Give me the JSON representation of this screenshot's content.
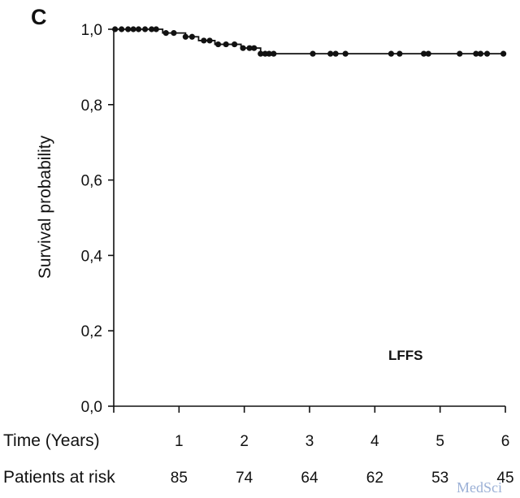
{
  "chart_data": {
    "type": "line",
    "panel_label": "C",
    "ylabel": "Survival probability",
    "xlabel_row": "Time (Years)",
    "xlim": [
      0,
      6
    ],
    "ylim": [
      0,
      1
    ],
    "x_ticks": [
      0,
      1,
      2,
      3,
      4,
      5,
      6
    ],
    "x_tick_labels": [
      "",
      "1",
      "2",
      "3",
      "4",
      "5",
      "6"
    ],
    "y_ticks": [
      0,
      0.2,
      0.4,
      0.6,
      0.8,
      1.0
    ],
    "y_tick_labels": [
      "0,0",
      "0,2",
      "0,4",
      "0,6",
      "0,8",
      "1,0"
    ],
    "annotation": "LFFS",
    "series": [
      {
        "steps": [
          [
            0,
            1.0
          ],
          [
            0.75,
            0.99
          ],
          [
            1.1,
            0.98
          ],
          [
            1.3,
            0.97
          ],
          [
            1.55,
            0.96
          ],
          [
            1.95,
            0.95
          ],
          [
            2.25,
            0.935
          ],
          [
            6.0,
            0.935
          ]
        ],
        "censored": [
          [
            0.02,
            1.0
          ],
          [
            0.12,
            1.0
          ],
          [
            0.22,
            1.0
          ],
          [
            0.3,
            1.0
          ],
          [
            0.38,
            1.0
          ],
          [
            0.48,
            1.0
          ],
          [
            0.58,
            1.0
          ],
          [
            0.65,
            1.0
          ],
          [
            0.8,
            0.99
          ],
          [
            0.92,
            0.99
          ],
          [
            1.1,
            0.98
          ],
          [
            1.2,
            0.98
          ],
          [
            1.38,
            0.97
          ],
          [
            1.47,
            0.97
          ],
          [
            1.6,
            0.96
          ],
          [
            1.72,
            0.96
          ],
          [
            1.85,
            0.96
          ],
          [
            1.98,
            0.95
          ],
          [
            2.08,
            0.95
          ],
          [
            2.15,
            0.95
          ],
          [
            2.25,
            0.935
          ],
          [
            2.32,
            0.935
          ],
          [
            2.38,
            0.935
          ],
          [
            2.45,
            0.935
          ],
          [
            3.05,
            0.935
          ],
          [
            3.32,
            0.935
          ],
          [
            3.4,
            0.935
          ],
          [
            3.55,
            0.935
          ],
          [
            4.25,
            0.935
          ],
          [
            4.38,
            0.935
          ],
          [
            4.75,
            0.935
          ],
          [
            4.82,
            0.935
          ],
          [
            5.3,
            0.935
          ],
          [
            5.55,
            0.935
          ],
          [
            5.62,
            0.935
          ],
          [
            5.72,
            0.935
          ],
          [
            5.97,
            0.935
          ]
        ]
      }
    ],
    "risk_table": {
      "title": "Patients at risk",
      "x": [
        1,
        2,
        3,
        4,
        5,
        6
      ],
      "values": [
        "85",
        "74",
        "64",
        "62",
        "53",
        "45"
      ]
    }
  },
  "watermark": "MedSci"
}
